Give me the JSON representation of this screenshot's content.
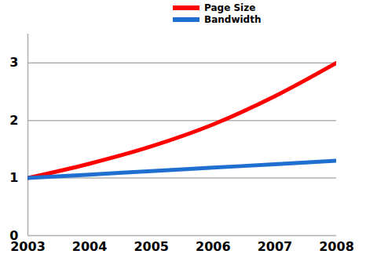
{
  "chart_data": {
    "type": "line",
    "x": [
      2003,
      2004,
      2005,
      2006,
      2007,
      2008
    ],
    "series": [
      {
        "name": "Page Size",
        "color": "#ff0000",
        "values": [
          1.0,
          1.25,
          1.55,
          1.93,
          2.42,
          3.0
        ]
      },
      {
        "name": "Bandwidth",
        "color": "#1f6fd0",
        "values": [
          1.0,
          1.06,
          1.12,
          1.18,
          1.24,
          1.3
        ]
      }
    ],
    "xlim": [
      2003,
      2008
    ],
    "xticks": [
      2003,
      2004,
      2005,
      2006,
      2007,
      2008
    ],
    "ylim": [
      0,
      3.5
    ],
    "yticks": [
      0,
      1,
      2,
      3
    ],
    "grid": true,
    "legend": "top"
  }
}
